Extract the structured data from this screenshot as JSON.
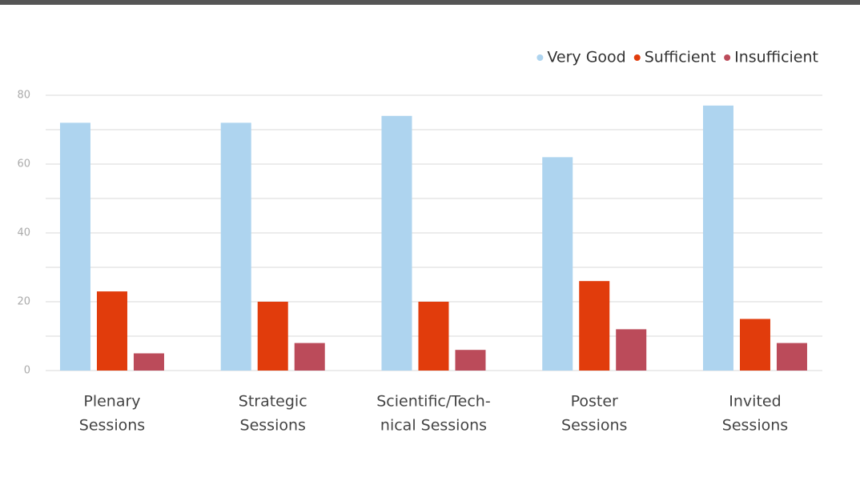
{
  "chart_data": {
    "type": "bar",
    "categories": [
      [
        "Plenary",
        "Sessions"
      ],
      [
        "Strategic",
        "Sessions"
      ],
      [
        "Scientific/Tech-",
        "nical Sessions"
      ],
      [
        "Poster",
        "Sessions"
      ],
      [
        "Invited",
        "Sessions"
      ]
    ],
    "series": [
      {
        "name": "Very Good",
        "color": "#aed4ef",
        "values": [
          72,
          72,
          74,
          62,
          77
        ]
      },
      {
        "name": "Sufficient",
        "color": "#e13c0c",
        "values": [
          23,
          20,
          20,
          26,
          15
        ]
      },
      {
        "name": "Insufficient",
        "color": "#bb4b5a",
        "values": [
          5,
          8,
          6,
          12,
          8
        ]
      }
    ],
    "ylim": [
      0,
      80
    ],
    "yticks": [
      0,
      20,
      40,
      60,
      80
    ],
    "minor_yticks": [
      10,
      30,
      50,
      70
    ],
    "grid": true,
    "legend": "top-right"
  }
}
